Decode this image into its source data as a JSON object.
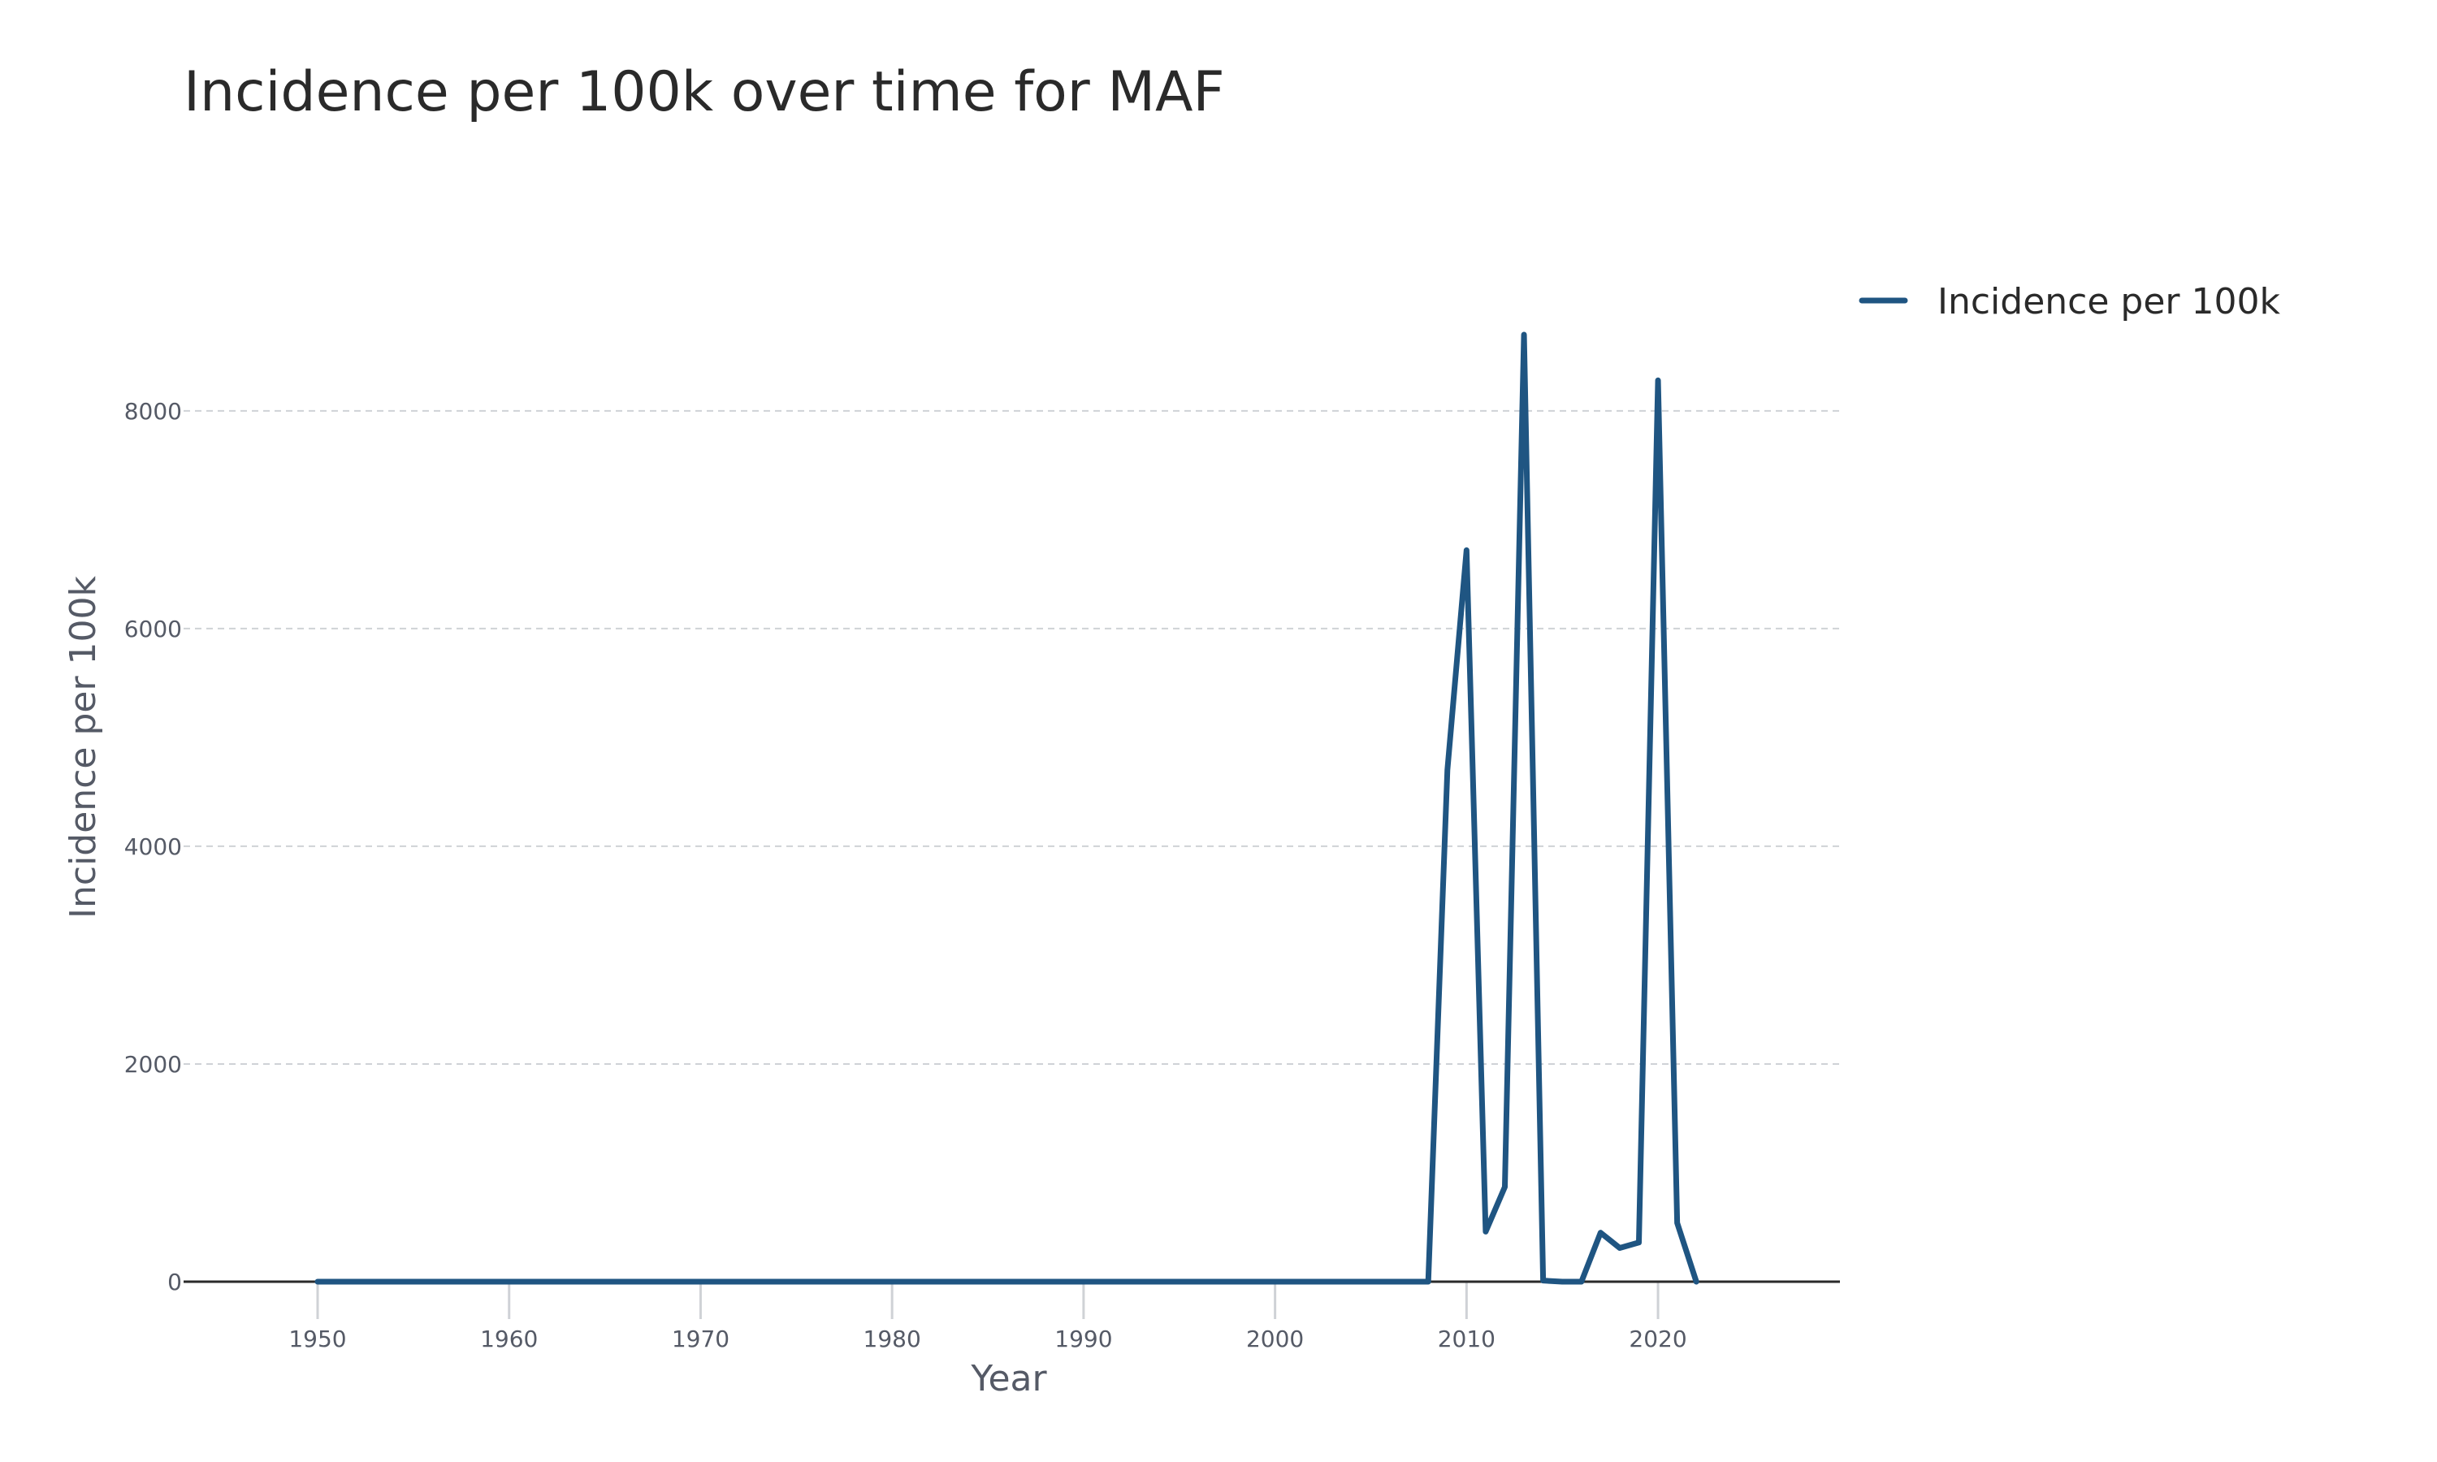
{
  "chart_data": {
    "type": "line",
    "title": "Incidence per 100k over time for MAF",
    "xlabel": "Year",
    "ylabel": "Incidence per 100k",
    "xlim": [
      1943,
      2029.5
    ],
    "ylim": [
      0,
      9200
    ],
    "x_ticks": [
      1950,
      1960,
      1970,
      1980,
      1990,
      2000,
      2010,
      2020
    ],
    "y_ticks": [
      0,
      2000,
      4000,
      6000,
      8000
    ],
    "grid": true,
    "legend_position": "top-right",
    "series": [
      {
        "name": "Incidence per 100k",
        "color": "#1f5582",
        "x": [
          1950,
          1951,
          1952,
          1953,
          1954,
          1955,
          1956,
          1957,
          1958,
          1959,
          1960,
          1961,
          1962,
          1963,
          1964,
          1965,
          1966,
          1967,
          1968,
          1969,
          1970,
          1971,
          1972,
          1973,
          1974,
          1975,
          1976,
          1977,
          1978,
          1979,
          1980,
          1981,
          1982,
          1983,
          1984,
          1985,
          1986,
          1987,
          1988,
          1989,
          1990,
          1991,
          1992,
          1993,
          1994,
          1995,
          1996,
          1997,
          1998,
          1999,
          2000,
          2001,
          2002,
          2003,
          2004,
          2005,
          2006,
          2007,
          2008,
          2009,
          2010,
          2011,
          2012,
          2013,
          2014,
          2015,
          2016,
          2017,
          2018,
          2019,
          2020,
          2021,
          2022,
          2023,
          2024,
          2025,
          2026,
          2027,
          2028
        ],
        "values": [
          0,
          0,
          0,
          0,
          0,
          0,
          0,
          0,
          0,
          0,
          0,
          0,
          0,
          0,
          0,
          0,
          0,
          0,
          0,
          0,
          0,
          0,
          0,
          0,
          0,
          0,
          0,
          0,
          0,
          0,
          0,
          0,
          0,
          0,
          0,
          0,
          0,
          0,
          0,
          0,
          0,
          0,
          0,
          0,
          0,
          0,
          0,
          0,
          0,
          0,
          0,
          0,
          0,
          0,
          0,
          0,
          0,
          0,
          0,
          4700,
          6720,
          460,
          870,
          8700,
          10,
          0,
          0,
          450,
          310,
          360,
          8280,
          540,
          0,
          null,
          null,
          null,
          null,
          null,
          null
        ]
      }
    ]
  }
}
